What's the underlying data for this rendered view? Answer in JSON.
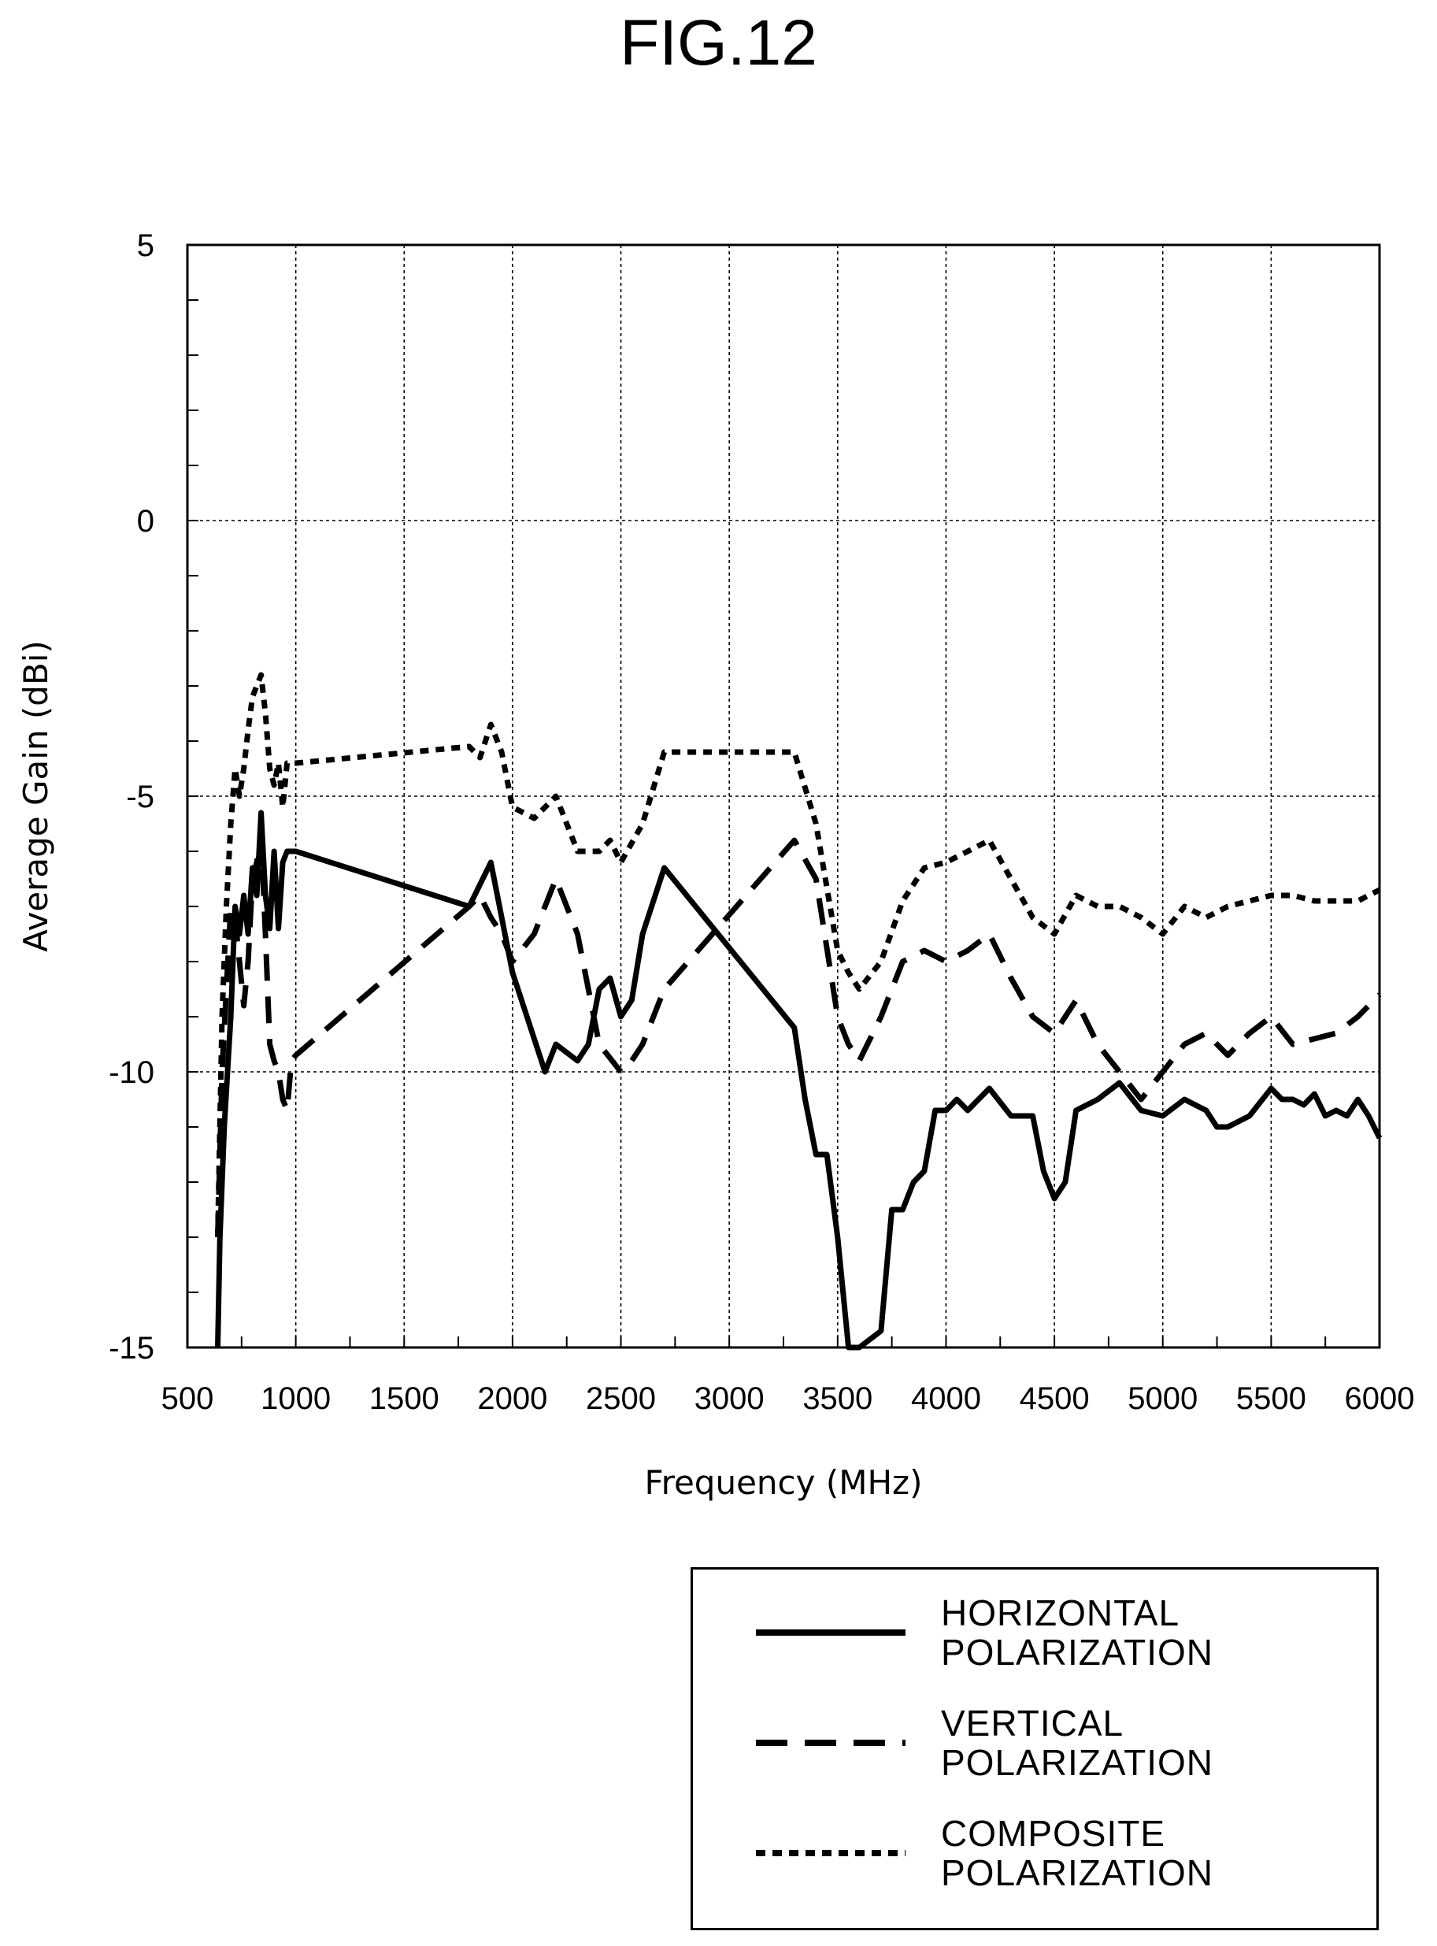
{
  "figure_title": "FIG.12",
  "chart_data": {
    "type": "line",
    "xlabel": "Frequency (MHz)",
    "ylabel": "Average Gain (dBi)",
    "xlim": [
      500,
      6000
    ],
    "ylim": [
      -15,
      5
    ],
    "xticks": [
      500,
      1000,
      1500,
      2000,
      2500,
      3000,
      3500,
      4000,
      4500,
      5000,
      5500,
      6000
    ],
    "yticks": [
      5,
      0,
      -5,
      -10,
      -15
    ],
    "grid": true,
    "legend_position": "bottom-right",
    "series": [
      {
        "name": "HORIZONTAL\nPOLARIZATION",
        "style": "solid",
        "x": [
          640,
          650,
          670,
          700,
          720,
          740,
          760,
          780,
          800,
          820,
          840,
          860,
          880,
          900,
          920,
          940,
          960,
          1000,
          1800,
          1900,
          2000,
          2150,
          2200,
          2300,
          2350,
          2400,
          2450,
          2500,
          2550,
          2600,
          2700,
          3300,
          3350,
          3400,
          3450,
          3500,
          3550,
          3600,
          3700,
          3750,
          3800,
          3850,
          3900,
          3950,
          4000,
          4050,
          4100,
          4200,
          4300,
          4400,
          4450,
          4500,
          4550,
          4600,
          4700,
          4800,
          4900,
          5000,
          5100,
          5200,
          5250,
          5300,
          5400,
          5500,
          5550,
          5600,
          5650,
          5700,
          5750,
          5800,
          5850,
          5900,
          5950,
          6000
        ],
        "y": [
          -15,
          -13,
          -11,
          -9,
          -7,
          -7.5,
          -6.8,
          -7.5,
          -6.3,
          -6.8,
          -5.3,
          -6.8,
          -7.4,
          -6,
          -7.4,
          -6.2,
          -6,
          -6,
          -7,
          -6.2,
          -8.2,
          -10,
          -9.5,
          -9.8,
          -9.5,
          -8.5,
          -8.3,
          -9,
          -8.7,
          -7.5,
          -6.3,
          -9.2,
          -10.5,
          -11.5,
          -11.5,
          -13,
          -15,
          -15,
          -14.7,
          -12.5,
          -12.5,
          -12,
          -11.8,
          -10.7,
          -10.7,
          -10.5,
          -10.7,
          -10.3,
          -10.8,
          -10.8,
          -11.8,
          -12.3,
          -12,
          -10.7,
          -10.5,
          -10.2,
          -10.7,
          -10.8,
          -10.5,
          -10.7,
          -11,
          -11,
          -10.8,
          -10.3,
          -10.5,
          -10.5,
          -10.6,
          -10.4,
          -10.8,
          -10.7,
          -10.8,
          -10.5,
          -10.8,
          -11.2
        ]
      },
      {
        "name": "VERTICAL\nPOLARIZATION",
        "style": "dashed",
        "x": [
          640,
          660,
          680,
          700,
          720,
          740,
          760,
          780,
          800,
          820,
          840,
          860,
          880,
          900,
          920,
          940,
          960,
          980,
          1000,
          1800,
          1850,
          1900,
          1950,
          2000,
          2100,
          2200,
          2300,
          2400,
          2500,
          2550,
          2600,
          2700,
          3300,
          3400,
          3500,
          3550,
          3600,
          3700,
          3800,
          3900,
          4000,
          4100,
          4200,
          4300,
          4400,
          4500,
          4600,
          4700,
          4800,
          4900,
          5000,
          5100,
          5200,
          5300,
          5400,
          5500,
          5600,
          5700,
          5800,
          5900,
          6000
        ],
        "y": [
          -13,
          -10,
          -8.5,
          -7,
          -7.2,
          -8,
          -8.8,
          -8,
          -6.5,
          -6.2,
          -5.7,
          -7.5,
          -9.5,
          -9.8,
          -10,
          -10.5,
          -10.7,
          -9.8,
          -9.7,
          -7,
          -6.8,
          -7.2,
          -7.5,
          -8,
          -7.5,
          -6.5,
          -7.5,
          -9.5,
          -10,
          -9.8,
          -9.5,
          -8.5,
          -5.8,
          -6.5,
          -9,
          -9.5,
          -9.8,
          -9,
          -8,
          -7.8,
          -8,
          -7.8,
          -7.5,
          -8.3,
          -9,
          -9.3,
          -8.7,
          -9.5,
          -10,
          -10.5,
          -10,
          -9.5,
          -9.3,
          -9.7,
          -9.3,
          -9,
          -9.5,
          -9.4,
          -9.3,
          -9,
          -8.6
        ]
      },
      {
        "name": "COMPOSITE\nPOLARIZATION",
        "style": "dotted",
        "x": [
          640,
          660,
          680,
          700,
          720,
          740,
          760,
          780,
          800,
          820,
          840,
          860,
          880,
          900,
          920,
          940,
          960,
          980,
          1000,
          1800,
          1850,
          1900,
          1950,
          2000,
          2100,
          2200,
          2300,
          2400,
          2450,
          2500,
          2600,
          2700,
          3300,
          3400,
          3500,
          3550,
          3600,
          3700,
          3800,
          3900,
          4000,
          4100,
          4200,
          4300,
          4400,
          4500,
          4600,
          4700,
          4800,
          4900,
          5000,
          5100,
          5200,
          5300,
          5400,
          5500,
          5600,
          5700,
          5800,
          5900,
          6000
        ],
        "y": [
          -13,
          -9,
          -7,
          -5.5,
          -4.5,
          -5,
          -4.5,
          -3.8,
          -3.2,
          -3,
          -2.8,
          -3.5,
          -4.5,
          -4.8,
          -4.4,
          -5.2,
          -4.4,
          -4.4,
          -4.4,
          -4.1,
          -4.3,
          -3.7,
          -4.2,
          -5.2,
          -5.4,
          -5,
          -6,
          -6,
          -5.8,
          -6.2,
          -5.5,
          -4.2,
          -4.2,
          -5.5,
          -7.8,
          -8.2,
          -8.5,
          -8,
          -6.9,
          -6.3,
          -6.2,
          -6,
          -5.8,
          -6.5,
          -7.2,
          -7.5,
          -6.8,
          -7,
          -7,
          -7.2,
          -7.5,
          -7,
          -7.2,
          -7,
          -6.9,
          -6.8,
          -6.8,
          -6.9,
          -6.9,
          -6.9,
          -6.7
        ]
      }
    ]
  }
}
